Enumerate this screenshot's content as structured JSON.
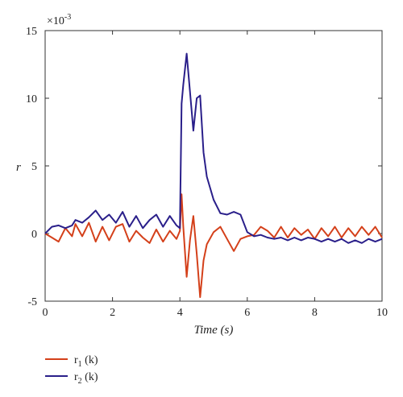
{
  "chart_data": {
    "type": "line",
    "xlabel": "Time (s)",
    "ylabel": "r",
    "exponent_label": "×10",
    "exponent_power": "-3",
    "xlim": [
      0,
      10
    ],
    "ylim": [
      -5,
      15
    ],
    "xticks": [
      "0",
      "2",
      "4",
      "6",
      "8",
      "10"
    ],
    "yticks": [
      "-5",
      "0",
      "5",
      "10",
      "15"
    ],
    "grid": false,
    "legend_position": "bottom-left",
    "colors": {
      "r1": "#d4401a",
      "r2": "#2a1f8a"
    },
    "series": [
      {
        "name": "r",
        "sub": "1",
        "suffix": " (k)",
        "color": "#d4401a",
        "x": [
          0,
          0.2,
          0.4,
          0.6,
          0.8,
          0.9,
          1.1,
          1.3,
          1.5,
          1.7,
          1.9,
          2.1,
          2.3,
          2.5,
          2.7,
          2.9,
          3.1,
          3.3,
          3.5,
          3.7,
          3.9,
          4.0,
          4.05,
          4.1,
          4.2,
          4.3,
          4.4,
          4.5,
          4.6,
          4.7,
          4.8,
          5.0,
          5.2,
          5.4,
          5.6,
          5.8,
          6.0,
          6.2,
          6.4,
          6.6,
          6.8,
          7.0,
          7.2,
          7.4,
          7.6,
          7.8,
          8.0,
          8.2,
          8.4,
          8.6,
          8.8,
          9.0,
          9.2,
          9.4,
          9.6,
          9.8,
          10.0
        ],
        "y": [
          0,
          -0.3,
          -0.6,
          0.4,
          -0.2,
          0.7,
          -0.2,
          0.8,
          -0.6,
          0.5,
          -0.5,
          0.5,
          0.7,
          -0.6,
          0.2,
          -0.3,
          -0.7,
          0.3,
          -0.6,
          0.2,
          -0.4,
          0.2,
          2.9,
          0.5,
          -3.2,
          -0.5,
          1.3,
          -1.5,
          -4.7,
          -2.0,
          -0.8,
          0.1,
          0.5,
          -0.4,
          -1.3,
          -0.4,
          -0.2,
          -0.1,
          0.5,
          0.2,
          -0.3,
          0.5,
          -0.3,
          0.4,
          -0.1,
          0.3,
          -0.4,
          0.4,
          -0.2,
          0.5,
          -0.3,
          0.4,
          -0.2,
          0.5,
          -0.1,
          0.5,
          -0.3
        ]
      },
      {
        "name": "r",
        "sub": "2",
        "suffix": " (k)",
        "color": "#2a1f8a",
        "x": [
          0,
          0.2,
          0.4,
          0.6,
          0.8,
          0.9,
          1.1,
          1.3,
          1.5,
          1.7,
          1.9,
          2.1,
          2.3,
          2.5,
          2.7,
          2.9,
          3.1,
          3.3,
          3.5,
          3.7,
          3.9,
          4.0,
          4.05,
          4.1,
          4.2,
          4.3,
          4.4,
          4.5,
          4.6,
          4.7,
          4.8,
          5.0,
          5.2,
          5.4,
          5.6,
          5.8,
          6.0,
          6.2,
          6.4,
          6.6,
          6.8,
          7.0,
          7.2,
          7.4,
          7.6,
          7.8,
          8.0,
          8.2,
          8.4,
          8.6,
          8.8,
          9.0,
          9.2,
          9.4,
          9.6,
          9.8,
          10.0
        ],
        "y": [
          0,
          0.5,
          0.6,
          0.4,
          0.6,
          1.0,
          0.8,
          1.2,
          1.7,
          1.0,
          1.4,
          0.8,
          1.6,
          0.5,
          1.3,
          0.4,
          1.0,
          1.4,
          0.5,
          1.3,
          0.6,
          0.4,
          9.6,
          11.0,
          13.3,
          10.5,
          7.6,
          10.0,
          10.2,
          6.0,
          4.2,
          2.5,
          1.5,
          1.4,
          1.6,
          1.4,
          0.1,
          -0.2,
          -0.1,
          -0.3,
          -0.4,
          -0.3,
          -0.5,
          -0.3,
          -0.5,
          -0.3,
          -0.4,
          -0.6,
          -0.4,
          -0.6,
          -0.4,
          -0.7,
          -0.5,
          -0.7,
          -0.4,
          -0.6,
          -0.4
        ]
      }
    ]
  }
}
